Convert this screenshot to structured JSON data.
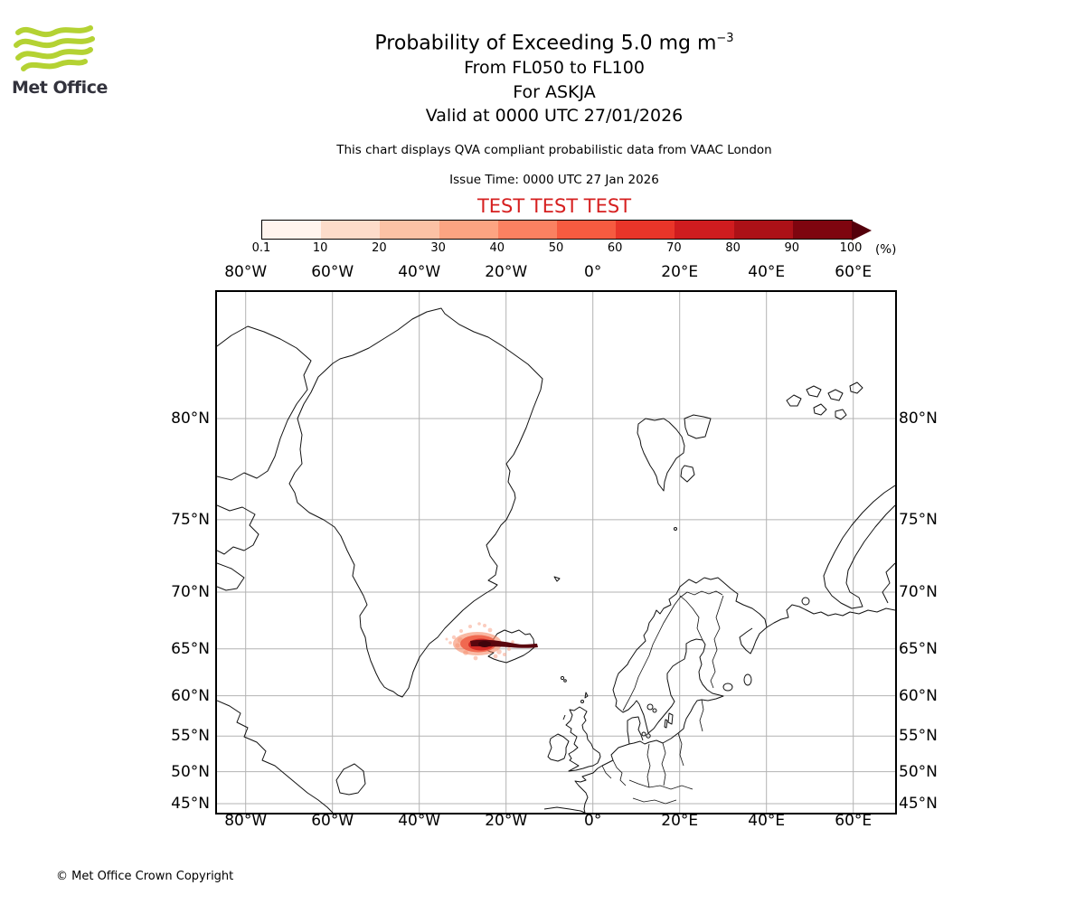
{
  "colors": {
    "brand_green": "#b4d233",
    "logo_text": "#33333d",
    "test_text": "#d62020",
    "coastline": "#111111",
    "gridline": "#b3b3b3"
  },
  "logo": {
    "text": "Met Office"
  },
  "header": {
    "title_main": "Probability of Exceeding 5.0 mg m",
    "title_sup": "−3",
    "subtitle_flight_levels": "From FL050 to FL100",
    "subtitle_volcano": "For ASKJA",
    "subtitle_valid": "Valid at 0000 UTC 27/01/2026",
    "description": "This chart displays QVA compliant probabilistic data from VAAC London",
    "issue_time": "Issue Time: 0000 UTC 27 Jan 2026",
    "test_banner": "TEST TEST TEST"
  },
  "colorbar": {
    "unit": "(%)",
    "ticks": [
      "0.1",
      "10",
      "20",
      "30",
      "40",
      "50",
      "60",
      "70",
      "80",
      "90",
      "100"
    ],
    "colors": [
      "#fff4ee",
      "#fddcca",
      "#fcc2a5",
      "#fca482",
      "#fb8161",
      "#f75b40",
      "#e93529",
      "#cf1c1f",
      "#ac1117",
      "#7e050f"
    ],
    "arrow_color": "#54000b"
  },
  "map": {
    "x_labels": [
      "80°W",
      "60°W",
      "40°W",
      "20°W",
      "0°",
      "20°E",
      "40°E",
      "60°E"
    ],
    "y_labels": [
      "80°N",
      "75°N",
      "70°N",
      "65°N",
      "60°N",
      "55°N",
      "50°N",
      "45°N"
    ]
  },
  "footer": {
    "copyright": "© Met Office Crown Copyright"
  }
}
